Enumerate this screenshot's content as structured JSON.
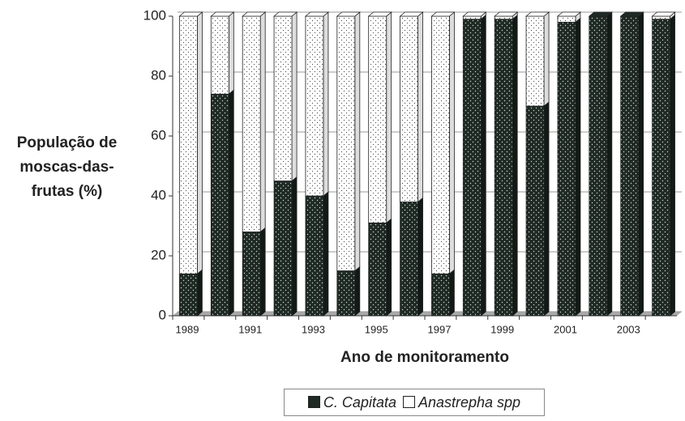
{
  "chart_data": {
    "type": "stacked_bar",
    "ylabel": "População de moscas-das-frutas (%)",
    "xlabel": "Ano de monitoramento",
    "categories": [
      "1989",
      null,
      "1991",
      null,
      "1993",
      null,
      "1995",
      null,
      "1997",
      null,
      "1999",
      null,
      "2001",
      null,
      "2003",
      null
    ],
    "series": [
      {
        "name": "C. Capitata",
        "color": "#1f2a25",
        "values": [
          14,
          74,
          28,
          45,
          40,
          15,
          31,
          38,
          14,
          99,
          99,
          70,
          98,
          100,
          100,
          99
        ]
      },
      {
        "name": "Anastrepha spp",
        "color": "#ffffff",
        "values": [
          86,
          26,
          72,
          55,
          60,
          85,
          69,
          62,
          86,
          1,
          1,
          30,
          2,
          0,
          0,
          1
        ]
      }
    ],
    "ylim": [
      0,
      100
    ],
    "yticks": [
      0,
      20,
      40,
      60,
      80,
      100
    ],
    "grid": true
  }
}
